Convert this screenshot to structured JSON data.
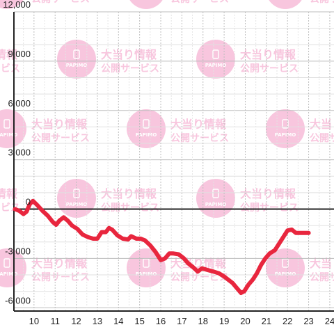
{
  "watermark": {
    "brand": "PAPIMO",
    "line1": "大当り情報",
    "line2": "公開サービス",
    "color": "#f8c6de"
  },
  "chart_data": {
    "type": "line",
    "title": "",
    "xlabel": "",
    "ylabel": "",
    "xlim": [
      9.05,
      24.2
    ],
    "ylim": [
      -6200,
      12000
    ],
    "x_ticks": [
      10,
      11,
      12,
      13,
      14,
      15,
      16,
      17,
      18,
      19,
      20,
      21,
      22,
      23,
      24
    ],
    "x_tick_labels": [
      "10",
      "11",
      "12",
      "13",
      "14",
      "15",
      "16",
      "17",
      "18",
      "19",
      "20",
      "21",
      "22",
      "23",
      "24"
    ],
    "y_ticks": [
      12000,
      9000,
      6000,
      3000,
      0,
      -3000,
      -6000
    ],
    "y_tick_labels": [
      "12,000",
      "9,000",
      "6,000",
      "3,000",
      "0",
      "-3,000",
      "-6,000"
    ],
    "grid": true,
    "line_color": "#e8263e",
    "series": [
      {
        "x": [
          9.1,
          9.3,
          9.5,
          9.65,
          9.8,
          9.95,
          10.15,
          10.4,
          10.65,
          10.9,
          11.05,
          11.2,
          11.4,
          11.6,
          11.8,
          12.05,
          12.3,
          12.55,
          12.8,
          13.0,
          13.2,
          13.4,
          13.55,
          13.7,
          13.95,
          14.2,
          14.45,
          14.6,
          14.85,
          15.05,
          15.25,
          15.5,
          15.75,
          16.0,
          16.2,
          16.4,
          16.6,
          16.85,
          17.1,
          17.3,
          17.5,
          17.75,
          17.95,
          18.2,
          18.5,
          18.75,
          19.0,
          19.2,
          19.4,
          19.6,
          19.8,
          19.95,
          20.15,
          20.35,
          20.55,
          20.75,
          20.95,
          21.15,
          21.4,
          21.6,
          21.8,
          22.0,
          22.2,
          22.4,
          22.7,
          23.0
        ],
        "y": [
          0,
          -100,
          -300,
          -150,
          300,
          500,
          250,
          -100,
          -400,
          -800,
          -950,
          -700,
          -500,
          -700,
          -1000,
          -1200,
          -1550,
          -1700,
          -1800,
          -1800,
          -1400,
          -1400,
          -1150,
          -1250,
          -1600,
          -1800,
          -1850,
          -1650,
          -1800,
          -1800,
          -1900,
          -2200,
          -2600,
          -3100,
          -3000,
          -2700,
          -2700,
          -2750,
          -3000,
          -3300,
          -3500,
          -3800,
          -3600,
          -3700,
          -3800,
          -3900,
          -4100,
          -4300,
          -4500,
          -4800,
          -5100,
          -5000,
          -4600,
          -4300,
          -3900,
          -3400,
          -3000,
          -2700,
          -2500,
          -2100,
          -1700,
          -1300,
          -1250,
          -1450,
          -1450,
          -1450
        ]
      }
    ]
  }
}
